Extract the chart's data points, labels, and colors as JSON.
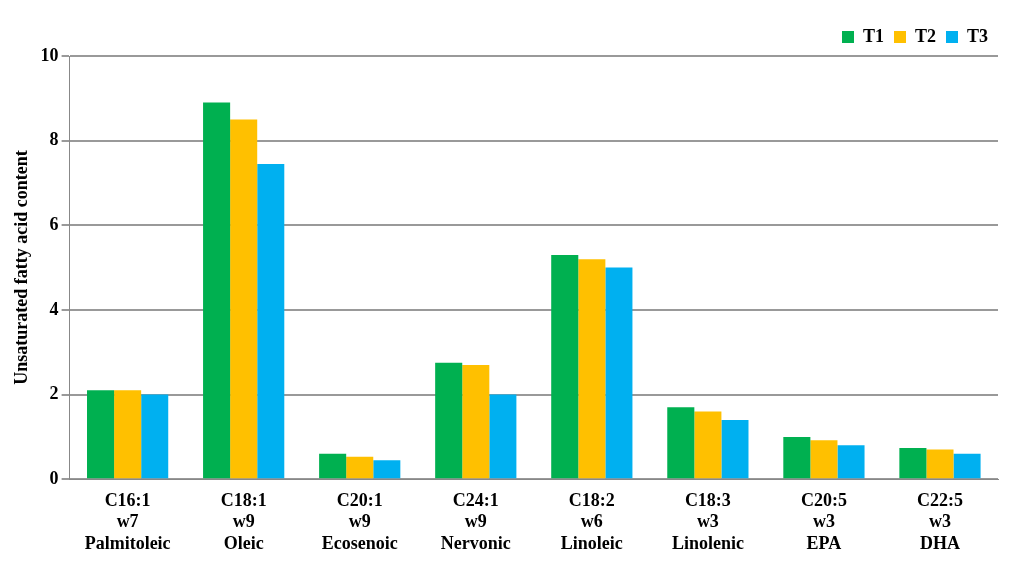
{
  "chart_data": {
    "type": "bar",
    "ylabel": "Unsaturated fatty acid content",
    "categories": [
      "C16:1\nw7\nPalmitoleic",
      "C18:1\nw9\nOleic",
      "C20:1\nw9\nEcosenoic",
      "C24:1\nw9\nNervonic",
      "C18:2\nw6\nLinoleic",
      "C18:3\nw3\nLinolenic",
      "C20:5\nw3\nEPA",
      "C22:5\nw3\nDHA"
    ],
    "series": [
      {
        "name": "T1",
        "color": "#00b050",
        "values": [
          2.1,
          8.9,
          0.6,
          2.75,
          5.3,
          1.7,
          1.0,
          0.74
        ]
      },
      {
        "name": "T2",
        "color": "#ffc000",
        "values": [
          2.1,
          8.5,
          0.53,
          2.7,
          5.2,
          1.6,
          0.92,
          0.7
        ]
      },
      {
        "name": "T3",
        "color": "#00b0f0",
        "values": [
          2.0,
          7.45,
          0.45,
          2.0,
          5.0,
          1.4,
          0.8,
          0.6
        ]
      }
    ],
    "ylim": [
      0,
      10
    ],
    "yticks": [
      0,
      2,
      4,
      6,
      8,
      10
    ],
    "grid": "y",
    "legend": "top right"
  }
}
